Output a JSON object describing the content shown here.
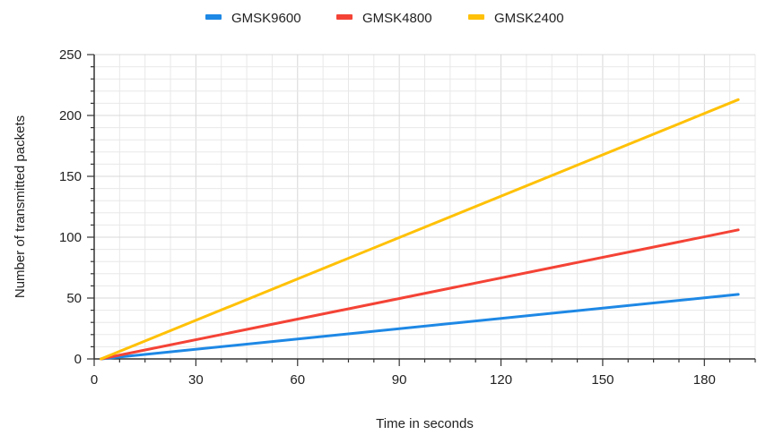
{
  "chart_data": {
    "type": "line",
    "title": "",
    "xlabel": "Time in seconds",
    "ylabel": "Number of transmitted packets",
    "xlim": [
      0,
      195
    ],
    "ylim": [
      0,
      250
    ],
    "x_major_ticks": [
      0,
      30,
      60,
      90,
      120,
      150,
      180
    ],
    "y_major_ticks": [
      0,
      50,
      100,
      150,
      200,
      250
    ],
    "x_tick_labels": [
      "0",
      "30",
      "60",
      "90",
      "120",
      "150",
      "180"
    ],
    "y_tick_labels": [
      "0",
      "50",
      "100",
      "150",
      "200",
      "250"
    ],
    "x_minor_step": 7.5,
    "y_minor_step": 10,
    "grid": true,
    "legend_position": "top-center",
    "series": [
      {
        "name": "GMSK9600",
        "color": "#1e88e5",
        "x": [
          2,
          190
        ],
        "values": [
          0,
          53
        ]
      },
      {
        "name": "GMSK4800",
        "color": "#f44336",
        "x": [
          2,
          190
        ],
        "values": [
          0,
          106
        ]
      },
      {
        "name": "GMSK2400",
        "color": "#ffc107",
        "x": [
          2,
          190
        ],
        "values": [
          0,
          213
        ]
      }
    ]
  }
}
